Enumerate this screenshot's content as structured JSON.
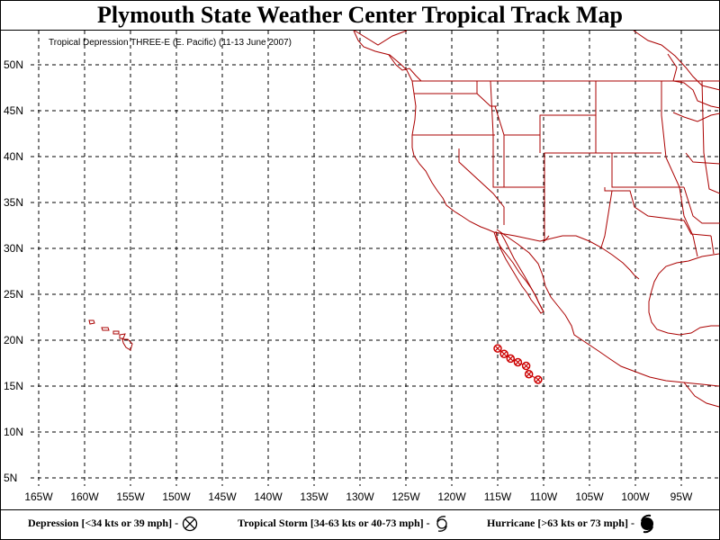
{
  "header": {
    "title": "Plymouth State Weather Center Tropical Track Map",
    "subtitle": "Tropical Depression THREE-E (E. Pacific)  (11-13 June 2007)"
  },
  "axes": {
    "lat_labels": [
      "5N",
      "10N",
      "15N",
      "20N",
      "25N",
      "30N",
      "35N",
      "40N",
      "45N",
      "50N"
    ],
    "lon_labels": [
      "165W",
      "160W",
      "155W",
      "150W",
      "145W",
      "140W",
      "135W",
      "130W",
      "125W",
      "120W",
      "115W",
      "110W",
      "105W",
      "100W",
      "95W"
    ]
  },
  "track": {
    "storm": "THREE-E",
    "category": "Depression",
    "points": [
      {
        "lon": -115.0,
        "lat": 19.1
      },
      {
        "lon": -114.3,
        "lat": 18.5
      },
      {
        "lon": -113.6,
        "lat": 18.0
      },
      {
        "lon": -112.8,
        "lat": 17.6
      },
      {
        "lon": -111.9,
        "lat": 17.2
      },
      {
        "lon": -111.6,
        "lat": 16.3
      },
      {
        "lon": -110.6,
        "lat": 15.7
      }
    ]
  },
  "legend": {
    "depression": "Depression [<34 kts or 39 mph] -",
    "storm": "Tropical Storm [34-63 kts or 40-73 mph] -",
    "hurricane": "Hurricane [>63 kts or 73 mph] -"
  },
  "colors": {
    "track": "#cc0000",
    "coast": "#aa0000",
    "grid": "#000000"
  }
}
